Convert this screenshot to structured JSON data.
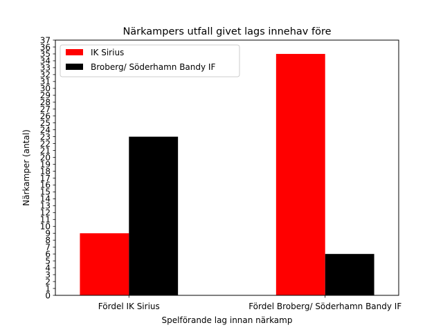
{
  "chart_data": {
    "type": "bar",
    "title": "Närkampers utfall givet lags innehav före",
    "xlabel": "Spelförande lag innan närkamp",
    "ylabel": "Närkamper (antal)",
    "categories": [
      "Fördel IK Sirius",
      "Fördel Broberg/ Söderhamn Bandy IF"
    ],
    "series": [
      {
        "name": "IK Sirius",
        "color": "#ff0000",
        "values": [
          9,
          35
        ]
      },
      {
        "name": "Broberg/ Söderhamn Bandy IF",
        "color": "#000000",
        "values": [
          23,
          6
        ]
      }
    ],
    "ylim": [
      0,
      37
    ],
    "yticks": [
      0,
      1,
      2,
      3,
      4,
      5,
      6,
      7,
      8,
      9,
      10,
      11,
      12,
      13,
      14,
      15,
      16,
      17,
      18,
      19,
      20,
      21,
      22,
      23,
      24,
      25,
      26,
      27,
      28,
      29,
      30,
      31,
      32,
      33,
      34,
      35,
      36,
      37
    ],
    "grid": false,
    "legend_position": "top-left"
  }
}
